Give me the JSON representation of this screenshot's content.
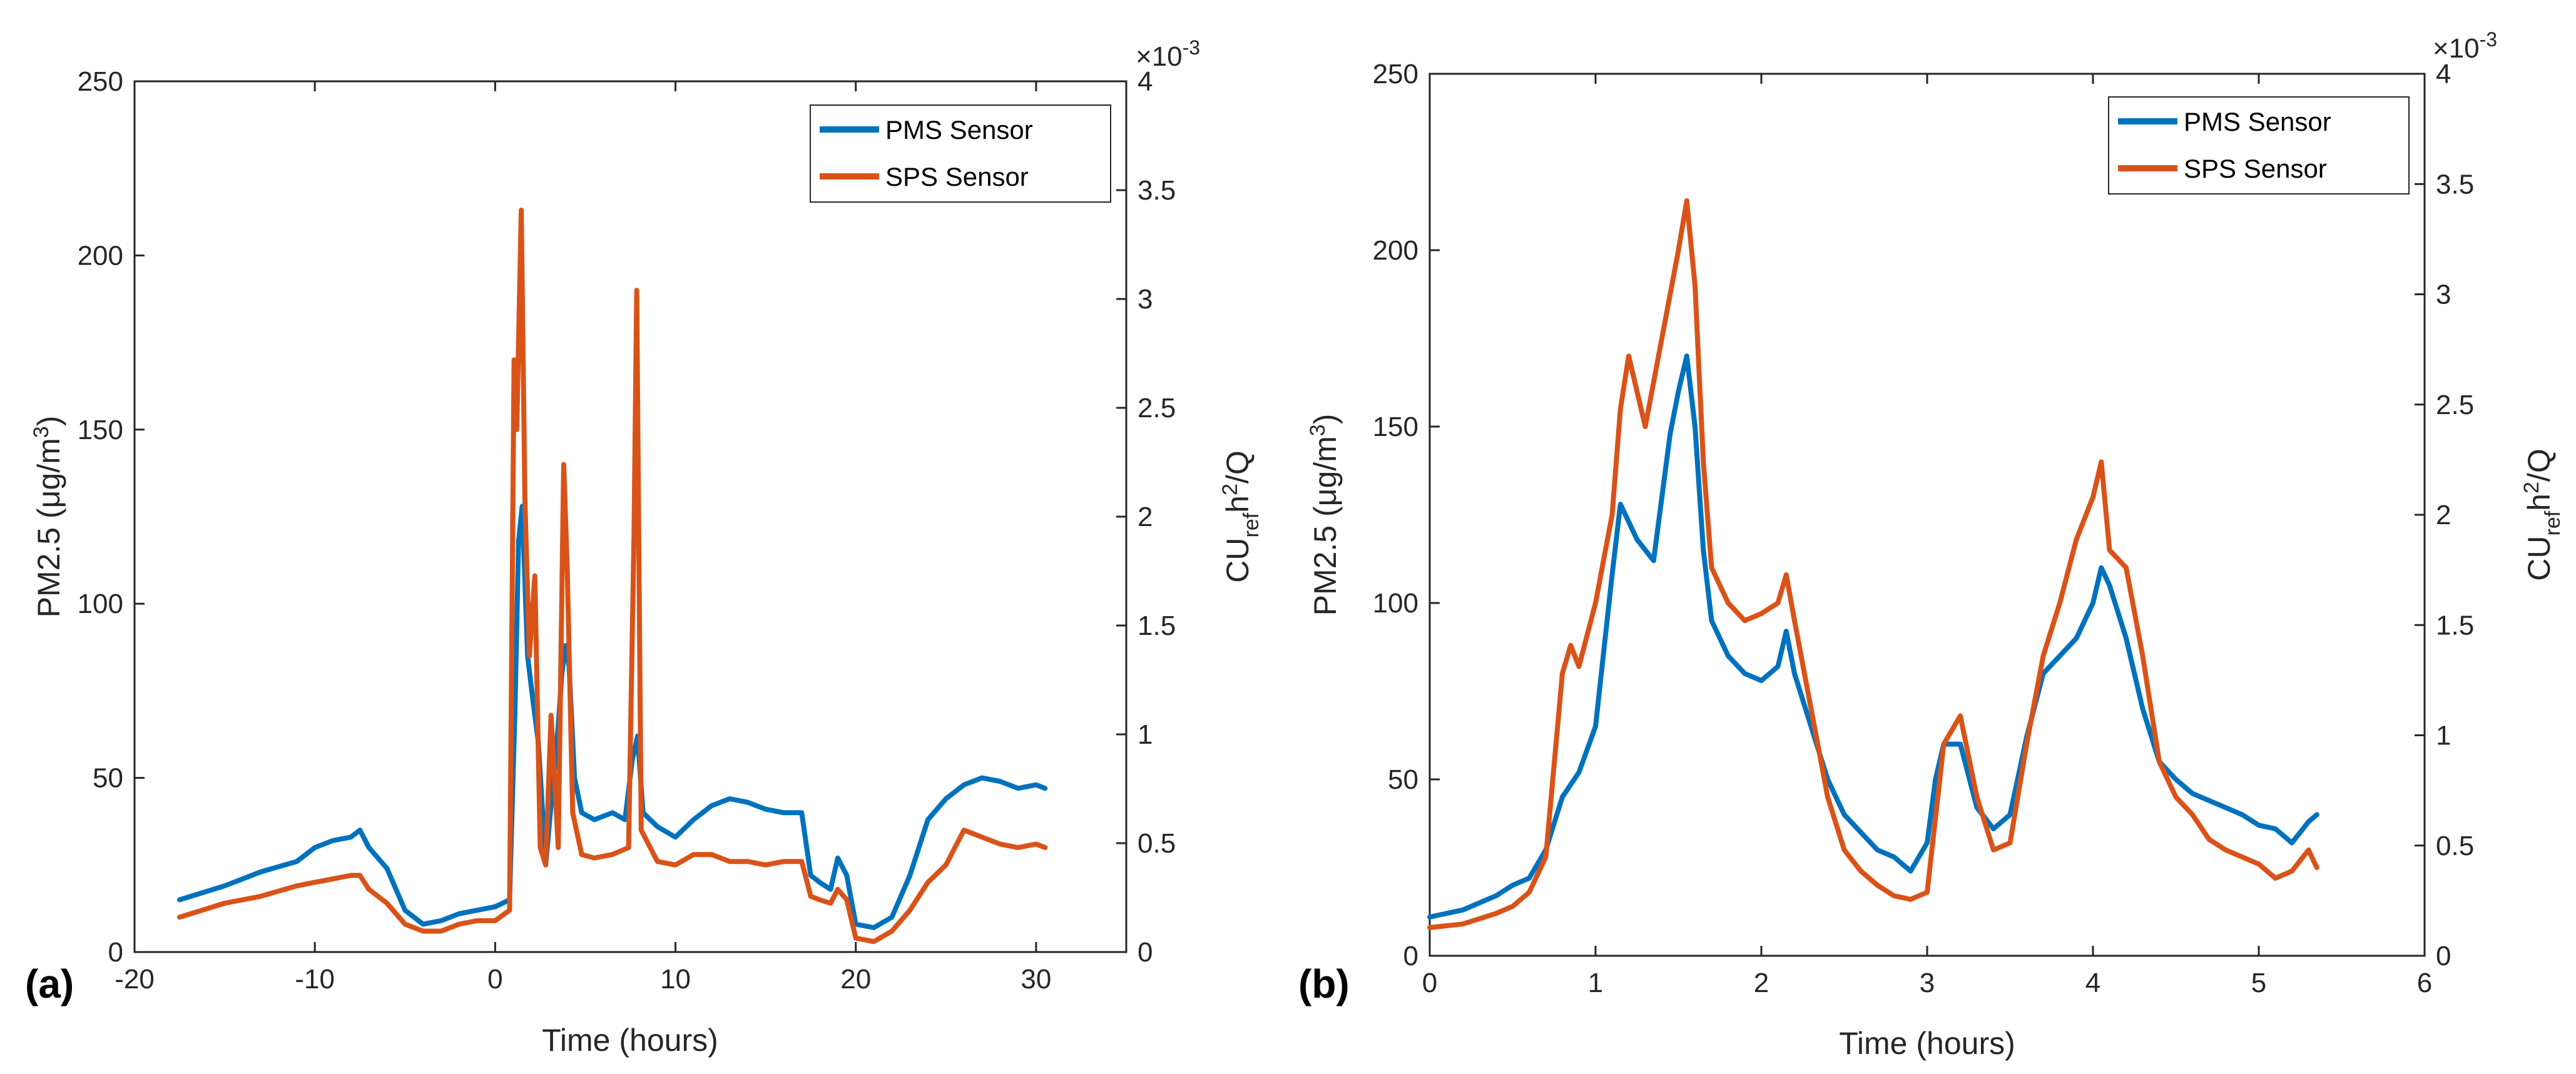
{
  "chart_data": [
    {
      "type": "line",
      "panel_label": "(a)",
      "xlabel": "Time (hours)",
      "ylabel": {
        "main": "PM2.5 (μg/m",
        "sup": "3",
        "end": ")"
      },
      "y2label": {
        "a": "CU",
        "sub": "ref",
        "b": "h",
        "sup": "2",
        "c": "/Q"
      },
      "y2_exponent": {
        "base": "×10",
        "exp": "-3"
      },
      "xlim": [
        -20,
        35
      ],
      "ylim": [
        0,
        250
      ],
      "y2lim": [
        0,
        4
      ],
      "xticks": [
        "-20",
        "-10",
        "0",
        "10",
        "20",
        "30"
      ],
      "yticks": [
        "0",
        "50",
        "100",
        "150",
        "200",
        "250"
      ],
      "y2ticks": [
        "0",
        "0.5",
        "1",
        "1.5",
        "2",
        "2.5",
        "3",
        "3.5",
        "4"
      ],
      "legend": [
        "PMS Sensor",
        "SPS  Sensor"
      ],
      "series": [
        {
          "name": "PMS Sensor",
          "color": "#0072BD",
          "points": [
            [
              -17.5,
              15
            ],
            [
              -15,
              19
            ],
            [
              -13,
              23
            ],
            [
              -11,
              26
            ],
            [
              -10,
              30
            ],
            [
              -9,
              32
            ],
            [
              -8,
              33
            ],
            [
              -7.5,
              35
            ],
            [
              -7,
              30
            ],
            [
              -6,
              24
            ],
            [
              -5,
              12
            ],
            [
              -4,
              8
            ],
            [
              -3,
              9
            ],
            [
              -2,
              11
            ],
            [
              -1,
              12
            ],
            [
              0,
              13
            ],
            [
              0.8,
              15
            ],
            [
              1.1,
              70
            ],
            [
              1.3,
              118
            ],
            [
              1.5,
              128
            ],
            [
              1.8,
              85
            ],
            [
              2.1,
              72
            ],
            [
              2.4,
              60
            ],
            [
              2.8,
              25
            ],
            [
              3.2,
              48
            ],
            [
              3.5,
              65
            ],
            [
              3.7,
              80
            ],
            [
              3.9,
              88
            ],
            [
              4.1,
              82
            ],
            [
              4.4,
              50
            ],
            [
              4.8,
              40
            ],
            [
              5.5,
              38
            ],
            [
              6.5,
              40
            ],
            [
              7.2,
              38
            ],
            [
              7.6,
              55
            ],
            [
              7.9,
              62
            ],
            [
              8.2,
              40
            ],
            [
              9,
              36
            ],
            [
              10,
              33
            ],
            [
              11,
              38
            ],
            [
              12,
              42
            ],
            [
              13,
              44
            ],
            [
              14,
              43
            ],
            [
              15,
              41
            ],
            [
              16,
              40
            ],
            [
              17,
              40
            ],
            [
              17.5,
              22
            ],
            [
              18,
              20
            ],
            [
              18.6,
              18
            ],
            [
              19,
              27
            ],
            [
              19.5,
              22
            ],
            [
              20,
              8
            ],
            [
              21,
              7
            ],
            [
              22,
              10
            ],
            [
              23,
              22
            ],
            [
              24,
              38
            ],
            [
              25,
              44
            ],
            [
              26,
              48
            ],
            [
              27,
              50
            ],
            [
              28,
              49
            ],
            [
              29,
              47
            ],
            [
              30,
              48
            ],
            [
              30.5,
              47
            ]
          ]
        },
        {
          "name": "SPS  Sensor",
          "color": "#D95319",
          "points": [
            [
              -17.5,
              10
            ],
            [
              -15,
              14
            ],
            [
              -13,
              16
            ],
            [
              -11,
              19
            ],
            [
              -10,
              20
            ],
            [
              -9,
              21
            ],
            [
              -8,
              22
            ],
            [
              -7.5,
              22
            ],
            [
              -7,
              18
            ],
            [
              -6,
              14
            ],
            [
              -5,
              8
            ],
            [
              -4,
              6
            ],
            [
              -3,
              6
            ],
            [
              -2,
              8
            ],
            [
              -1,
              9
            ],
            [
              0,
              9
            ],
            [
              0.8,
              12
            ],
            [
              1.05,
              170
            ],
            [
              1.2,
              150
            ],
            [
              1.45,
              213
            ],
            [
              1.65,
              130
            ],
            [
              1.9,
              85
            ],
            [
              2.2,
              108
            ],
            [
              2.5,
              30
            ],
            [
              2.8,
              25
            ],
            [
              3.1,
              68
            ],
            [
              3.5,
              30
            ],
            [
              3.8,
              140
            ],
            [
              4.0,
              110
            ],
            [
              4.3,
              40
            ],
            [
              4.8,
              28
            ],
            [
              5.5,
              27
            ],
            [
              6.5,
              28
            ],
            [
              7.4,
              30
            ],
            [
              7.7,
              120
            ],
            [
              7.85,
              190
            ],
            [
              8.1,
              35
            ],
            [
              9,
              26
            ],
            [
              10,
              25
            ],
            [
              11,
              28
            ],
            [
              12,
              28
            ],
            [
              13,
              26
            ],
            [
              14,
              26
            ],
            [
              15,
              25
            ],
            [
              16,
              26
            ],
            [
              17,
              26
            ],
            [
              17.5,
              16
            ],
            [
              18,
              15
            ],
            [
              18.6,
              14
            ],
            [
              19,
              18
            ],
            [
              19.5,
              15
            ],
            [
              20,
              4
            ],
            [
              21,
              3
            ],
            [
              22,
              6
            ],
            [
              23,
              12
            ],
            [
              24,
              20
            ],
            [
              25,
              25
            ],
            [
              26,
              35
            ],
            [
              27,
              33
            ],
            [
              28,
              31
            ],
            [
              29,
              30
            ],
            [
              30,
              31
            ],
            [
              30.5,
              30
            ]
          ]
        }
      ]
    },
    {
      "type": "line",
      "panel_label": "(b)",
      "xlabel": "Time (hours)",
      "ylabel": {
        "main": "PM2.5 (μg/m",
        "sup": "3",
        "end": ")"
      },
      "y2label": {
        "a": "CU",
        "sub": "ref",
        "b": "h",
        "sup": "2",
        "c": "/Q"
      },
      "y2_exponent": {
        "base": "×10",
        "exp": "-3"
      },
      "xlim": [
        0,
        6
      ],
      "ylim": [
        0,
        250
      ],
      "y2lim": [
        0,
        4
      ],
      "xticks": [
        "0",
        "1",
        "2",
        "3",
        "4",
        "5",
        "6"
      ],
      "yticks": [
        "0",
        "50",
        "100",
        "150",
        "200",
        "250"
      ],
      "y2ticks": [
        "0",
        "0.5",
        "1",
        "1.5",
        "2",
        "2.5",
        "3",
        "3.5",
        "4"
      ],
      "legend": [
        "PMS Sensor",
        "SPS  Sensor"
      ],
      "series": [
        {
          "name": "PMS Sensor",
          "color": "#0072BD",
          "points": [
            [
              0,
              11
            ],
            [
              0.2,
              13
            ],
            [
              0.4,
              17
            ],
            [
              0.5,
              20
            ],
            [
              0.6,
              22
            ],
            [
              0.7,
              30
            ],
            [
              0.8,
              45
            ],
            [
              0.9,
              52
            ],
            [
              1.0,
              65
            ],
            [
              1.1,
              108
            ],
            [
              1.15,
              128
            ],
            [
              1.25,
              118
            ],
            [
              1.35,
              112
            ],
            [
              1.45,
              148
            ],
            [
              1.5,
              160
            ],
            [
              1.55,
              170
            ],
            [
              1.6,
              150
            ],
            [
              1.65,
              115
            ],
            [
              1.7,
              95
            ],
            [
              1.8,
              85
            ],
            [
              1.9,
              80
            ],
            [
              2.0,
              78
            ],
            [
              2.1,
              82
            ],
            [
              2.15,
              92
            ],
            [
              2.2,
              80
            ],
            [
              2.3,
              65
            ],
            [
              2.4,
              50
            ],
            [
              2.5,
              40
            ],
            [
              2.6,
              35
            ],
            [
              2.7,
              30
            ],
            [
              2.8,
              28
            ],
            [
              2.9,
              24
            ],
            [
              3.0,
              32
            ],
            [
              3.05,
              50
            ],
            [
              3.1,
              60
            ],
            [
              3.2,
              60
            ],
            [
              3.3,
              42
            ],
            [
              3.4,
              36
            ],
            [
              3.5,
              40
            ],
            [
              3.6,
              62
            ],
            [
              3.7,
              80
            ],
            [
              3.8,
              85
            ],
            [
              3.9,
              90
            ],
            [
              4.0,
              100
            ],
            [
              4.05,
              110
            ],
            [
              4.1,
              105
            ],
            [
              4.2,
              90
            ],
            [
              4.3,
              70
            ],
            [
              4.4,
              55
            ],
            [
              4.5,
              50
            ],
            [
              4.6,
              46
            ],
            [
              4.7,
              44
            ],
            [
              4.8,
              42
            ],
            [
              4.9,
              40
            ],
            [
              5.0,
              37
            ],
            [
              5.1,
              36
            ],
            [
              5.2,
              32
            ],
            [
              5.3,
              38
            ],
            [
              5.35,
              40
            ]
          ]
        },
        {
          "name": "SPS  Sensor",
          "color": "#D95319",
          "points": [
            [
              0,
              8
            ],
            [
              0.2,
              9
            ],
            [
              0.4,
              12
            ],
            [
              0.5,
              14
            ],
            [
              0.6,
              18
            ],
            [
              0.7,
              28
            ],
            [
              0.8,
              80
            ],
            [
              0.85,
              88
            ],
            [
              0.9,
              82
            ],
            [
              1.0,
              100
            ],
            [
              1.1,
              125
            ],
            [
              1.15,
              155
            ],
            [
              1.2,
              170
            ],
            [
              1.3,
              150
            ],
            [
              1.4,
              175
            ],
            [
              1.5,
              200
            ],
            [
              1.55,
              214
            ],
            [
              1.6,
              190
            ],
            [
              1.65,
              140
            ],
            [
              1.7,
              110
            ],
            [
              1.8,
              100
            ],
            [
              1.9,
              95
            ],
            [
              2.0,
              97
            ],
            [
              2.1,
              100
            ],
            [
              2.15,
              108
            ],
            [
              2.2,
              95
            ],
            [
              2.3,
              70
            ],
            [
              2.4,
              45
            ],
            [
              2.5,
              30
            ],
            [
              2.6,
              24
            ],
            [
              2.7,
              20
            ],
            [
              2.8,
              17
            ],
            [
              2.9,
              16
            ],
            [
              3.0,
              18
            ],
            [
              3.1,
              60
            ],
            [
              3.2,
              68
            ],
            [
              3.3,
              45
            ],
            [
              3.4,
              30
            ],
            [
              3.5,
              32
            ],
            [
              3.6,
              60
            ],
            [
              3.7,
              85
            ],
            [
              3.8,
              100
            ],
            [
              3.9,
              118
            ],
            [
              4.0,
              130
            ],
            [
              4.05,
              140
            ],
            [
              4.1,
              115
            ],
            [
              4.2,
              110
            ],
            [
              4.3,
              85
            ],
            [
              4.4,
              55
            ],
            [
              4.5,
              45
            ],
            [
              4.6,
              40
            ],
            [
              4.7,
              33
            ],
            [
              4.8,
              30
            ],
            [
              4.9,
              28
            ],
            [
              5.0,
              26
            ],
            [
              5.1,
              22
            ],
            [
              5.2,
              24
            ],
            [
              5.3,
              30
            ],
            [
              5.35,
              25
            ]
          ]
        }
      ]
    }
  ]
}
